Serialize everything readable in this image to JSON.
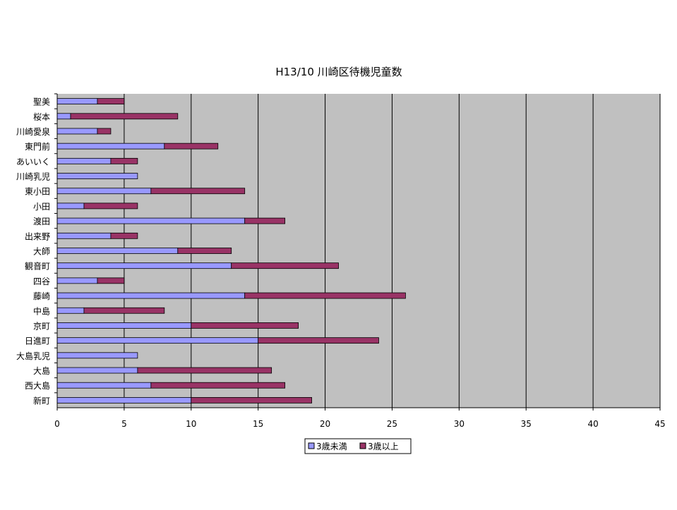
{
  "chart_data": {
    "type": "bar",
    "orientation": "horizontal",
    "stacked": true,
    "title": "H13/10  川崎区待機児童数",
    "categories": [
      "聖美",
      "桜本",
      "川崎愛泉",
      "東門前",
      "あいいく",
      "川崎乳児",
      "東小田",
      "小田",
      "渡田",
      "出来野",
      "大師",
      "観音町",
      "四谷",
      "藤崎",
      "中島",
      "京町",
      "日進町",
      "大島乳児",
      "大島",
      "西大島",
      "新町"
    ],
    "series": [
      {
        "name": "3歳未満",
        "color": "#9999ff",
        "values": [
          3,
          1,
          3,
          8,
          4,
          6,
          7,
          2,
          14,
          4,
          9,
          13,
          3,
          14,
          2,
          10,
          15,
          6,
          6,
          7,
          10
        ]
      },
      {
        "name": "3歳以上",
        "color": "#993366",
        "values": [
          2,
          8,
          1,
          4,
          2,
          0,
          7,
          4,
          3,
          2,
          4,
          8,
          2,
          12,
          6,
          8,
          9,
          0,
          10,
          10,
          9
        ]
      }
    ],
    "xlim": [
      0,
      45
    ],
    "xticks": [
      0,
      5,
      10,
      15,
      20,
      25,
      30,
      35,
      40,
      45
    ],
    "grid": true,
    "plot_background": "#c0c0c0",
    "legend_position": "bottom"
  }
}
